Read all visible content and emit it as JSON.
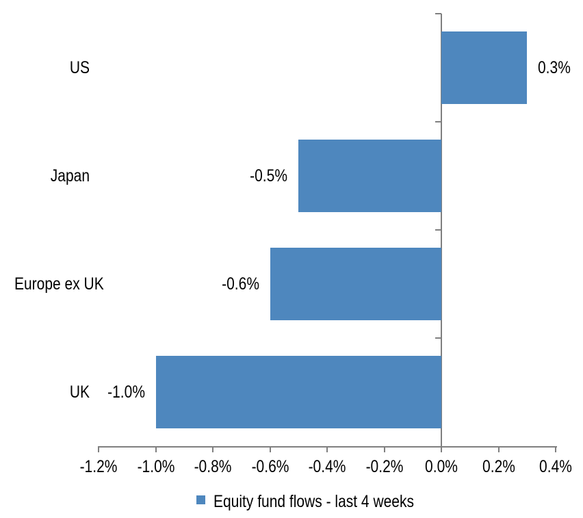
{
  "chart_data": {
    "type": "bar",
    "orientation": "horizontal",
    "title": "",
    "xlabel": "",
    "ylabel": "",
    "categories": [
      "US",
      "Japan",
      "Europe ex UK",
      "UK"
    ],
    "series": [
      {
        "name": "Equity fund flows - last 4 weeks",
        "values": [
          0.3,
          -0.5,
          -0.6,
          -1.0
        ],
        "data_labels": [
          "0.3%",
          "-0.5%",
          "-0.6%",
          "-1.0%"
        ]
      }
    ],
    "unit": "%",
    "xlim": [
      -1.2,
      0.4
    ],
    "x_tick_values": [
      -1.2,
      -1.0,
      -0.8,
      -0.6,
      -0.4,
      -0.2,
      0.0,
      0.2,
      0.4
    ],
    "x_tick_labels": [
      "-1.2%",
      "-1.0%",
      "-0.8%",
      "-0.6%",
      "-0.4%",
      "-0.2%",
      "0.0%",
      "0.2%",
      "0.4%"
    ],
    "grid": false,
    "legend_position": "bottom",
    "bar_color": "#4E87BE",
    "axis_color": "#7F7F7F",
    "text_color": "#000000"
  },
  "legend": {
    "label": "Equity fund flows - last 4 weeks",
    "swatch_color": "#4E87BE"
  }
}
